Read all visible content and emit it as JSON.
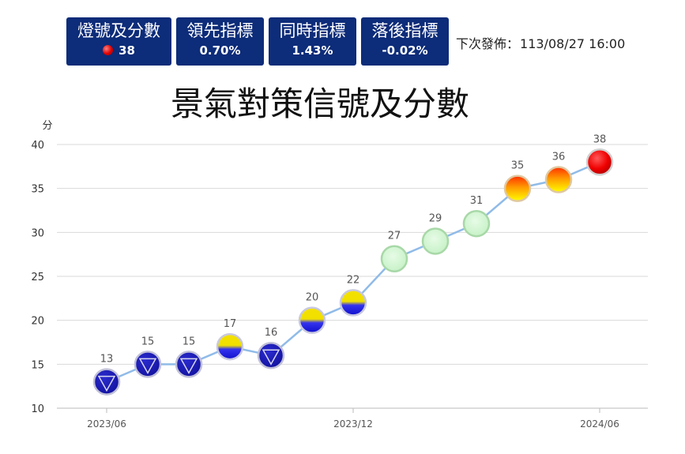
{
  "cards": [
    {
      "title": "燈號及分數",
      "value": "38",
      "signal": "red"
    },
    {
      "title": "領先指標",
      "value": "0.70%"
    },
    {
      "title": "同時指標",
      "value": "1.43%"
    },
    {
      "title": "落後指標",
      "value": "-0.02%"
    }
  ],
  "next_release": {
    "label": "下次發佈：",
    "value": "113/08/27 16:00"
  },
  "chart_data": {
    "type": "line",
    "title": "景氣對策信號及分數",
    "ylabel": "分",
    "ylim": [
      10,
      40
    ],
    "yticks": [
      10,
      15,
      20,
      25,
      30,
      35,
      40
    ],
    "x_tick_labels": [
      {
        "index": 0,
        "label": "2023/06"
      },
      {
        "index": 6,
        "label": "2023/12"
      },
      {
        "index": 12,
        "label": "2024/06"
      }
    ],
    "x": [
      "2023/06",
      "2023/07",
      "2023/08",
      "2023/09",
      "2023/10",
      "2023/11",
      "2023/12",
      "2024/01",
      "2024/02",
      "2024/03",
      "2024/04",
      "2024/05",
      "2024/06"
    ],
    "values": [
      13,
      15,
      15,
      17,
      16,
      20,
      22,
      27,
      29,
      31,
      35,
      36,
      38
    ],
    "signals": [
      "blue",
      "blue",
      "blue",
      "yellow-blue",
      "blue",
      "yellow-blue",
      "yellow-blue",
      "green",
      "green",
      "green",
      "yellow-red",
      "yellow-red",
      "red"
    ],
    "grid": true,
    "colors": {
      "line": "#90bbe8",
      "grid": "#d9d9d9",
      "card_bg": "#0d2c79"
    }
  }
}
